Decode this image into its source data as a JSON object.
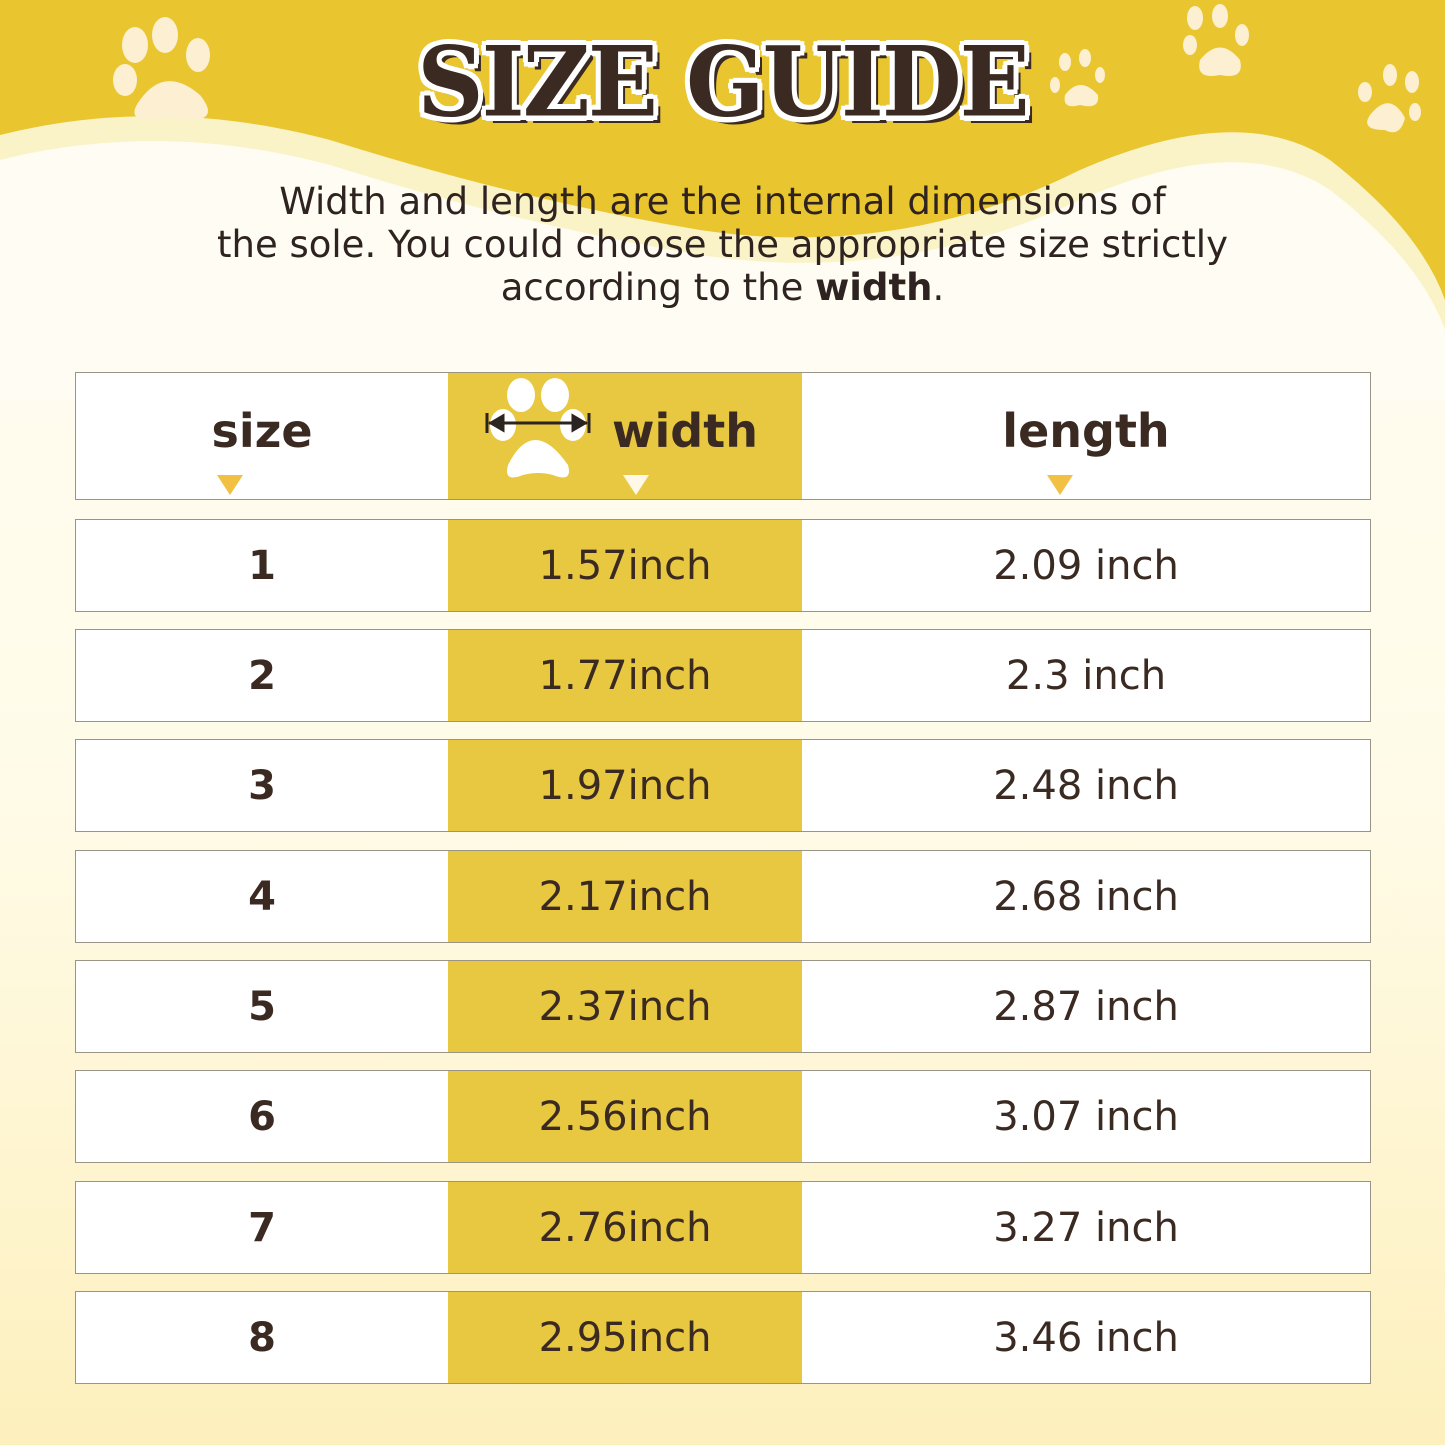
{
  "title": "SIZE GUIDE",
  "intro": {
    "line1": "Width and length are the internal dimensions of",
    "line2": "the sole. You could choose the appropriate size strictly",
    "line3_prefix": "according to the ",
    "line3_bold": "width",
    "line3_suffix": "."
  },
  "colors": {
    "accent": "#e8c840",
    "text": "#3a2a22",
    "triangle": "#f2c043"
  },
  "table": {
    "headers": {
      "size": "size",
      "width": "width",
      "length": "length"
    },
    "rows": [
      {
        "size": "1",
        "width": "1.57inch",
        "length": "2.09 inch"
      },
      {
        "size": "2",
        "width": "1.77inch",
        "length": "2.3 inch"
      },
      {
        "size": "3",
        "width": "1.97inch",
        "length": "2.48 inch"
      },
      {
        "size": "4",
        "width": "2.17inch",
        "length": "2.68 inch"
      },
      {
        "size": "5",
        "width": "2.37inch",
        "length": "2.87 inch"
      },
      {
        "size": "6",
        "width": "2.56inch",
        "length": "3.07 inch"
      },
      {
        "size": "7",
        "width": "2.76inch",
        "length": "3.27 inch"
      },
      {
        "size": "8",
        "width": "2.95inch",
        "length": "3.46 inch"
      }
    ]
  }
}
